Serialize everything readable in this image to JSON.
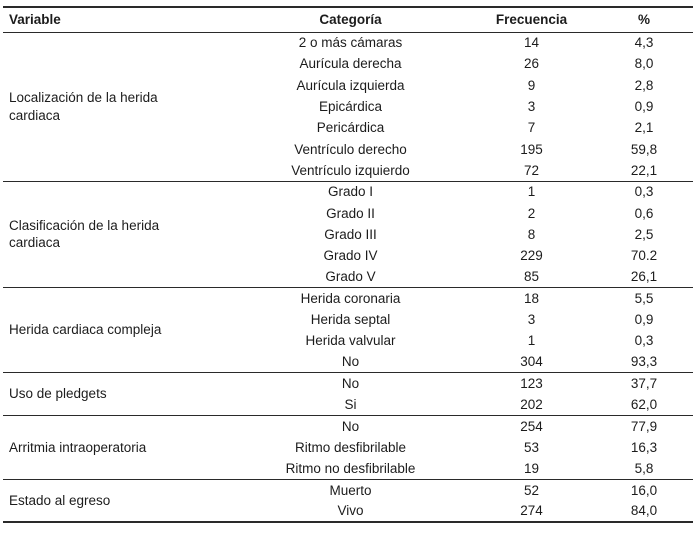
{
  "table": {
    "headers": [
      "Variable",
      "Categoría",
      "Frecuencia",
      "%"
    ],
    "groups": [
      {
        "variable": "Localización de la herida cardiaca",
        "rows": [
          {
            "categoria": "2 o más cámaras",
            "frecuencia": "14",
            "pct": "4,3"
          },
          {
            "categoria": "Aurícula derecha",
            "frecuencia": "26",
            "pct": "8,0"
          },
          {
            "categoria": "Aurícula izquierda",
            "frecuencia": "9",
            "pct": "2,8"
          },
          {
            "categoria": "Epicárdica",
            "frecuencia": "3",
            "pct": "0,9"
          },
          {
            "categoria": "Pericárdica",
            "frecuencia": "7",
            "pct": "2,1"
          },
          {
            "categoria": "Ventrículo derecho",
            "frecuencia": "195",
            "pct": "59,8"
          },
          {
            "categoria": "Ventrículo izquierdo",
            "frecuencia": "72",
            "pct": "22,1"
          }
        ]
      },
      {
        "variable": "Clasificación de la herida cardiaca",
        "rows": [
          {
            "categoria": "Grado I",
            "frecuencia": "1",
            "pct": "0,3"
          },
          {
            "categoria": "Grado II",
            "frecuencia": "2",
            "pct": "0,6"
          },
          {
            "categoria": "Grado III",
            "frecuencia": "8",
            "pct": "2,5"
          },
          {
            "categoria": "Grado IV",
            "frecuencia": "229",
            "pct": "70.2"
          },
          {
            "categoria": "Grado V",
            "frecuencia": "85",
            "pct": "26,1"
          }
        ]
      },
      {
        "variable": "Herida cardiaca compleja",
        "rows": [
          {
            "categoria": "Herida coronaria",
            "frecuencia": "18",
            "pct": "5,5"
          },
          {
            "categoria": "Herida septal",
            "frecuencia": "3",
            "pct": "0,9"
          },
          {
            "categoria": "Herida valvular",
            "frecuencia": "1",
            "pct": "0,3"
          },
          {
            "categoria": "No",
            "frecuencia": "304",
            "pct": "93,3"
          }
        ]
      },
      {
        "variable": "Uso de pledgets",
        "rows": [
          {
            "categoria": "No",
            "frecuencia": "123",
            "pct": "37,7"
          },
          {
            "categoria": "Si",
            "frecuencia": "202",
            "pct": "62,0"
          }
        ]
      },
      {
        "variable": "Arritmia intraoperatoria",
        "rows": [
          {
            "categoria": "No",
            "frecuencia": "254",
            "pct": "77,9"
          },
          {
            "categoria": "Ritmo desfibrilable",
            "frecuencia": "53",
            "pct": "16,3"
          },
          {
            "categoria": "Ritmo no desfibrilable",
            "frecuencia": "19",
            "pct": "5,8"
          }
        ]
      },
      {
        "variable": "Estado al egreso",
        "rows": [
          {
            "categoria": "Muerto",
            "frecuencia": "52",
            "pct": "16,0"
          },
          {
            "categoria": "Vivo",
            "frecuencia": "274",
            "pct": "84,0"
          }
        ]
      }
    ]
  }
}
